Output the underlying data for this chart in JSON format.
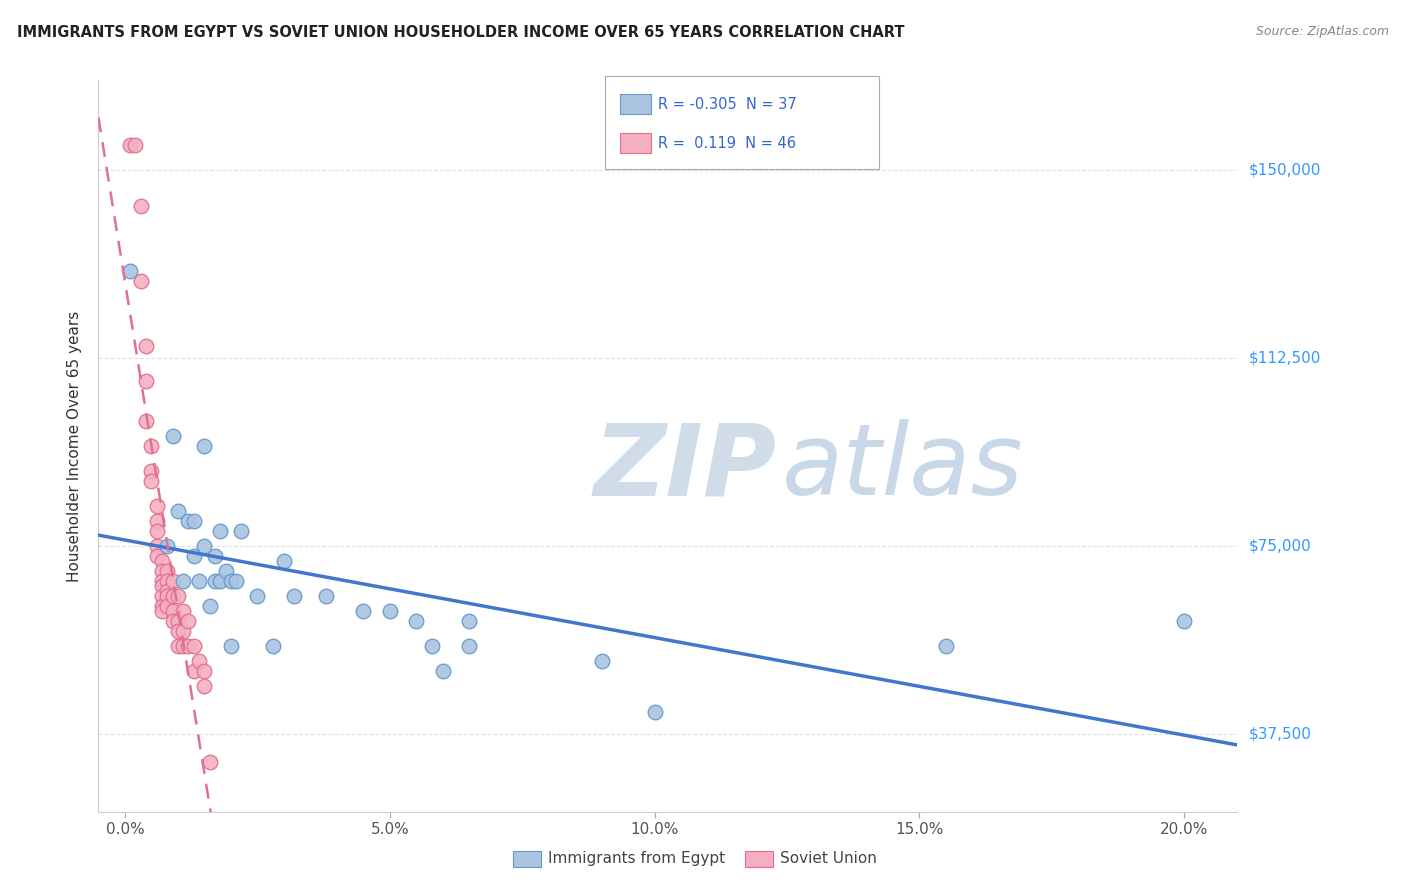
{
  "title": "IMMIGRANTS FROM EGYPT VS SOVIET UNION HOUSEHOLDER INCOME OVER 65 YEARS CORRELATION CHART",
  "source": "Source: ZipAtlas.com",
  "ylabel": "Householder Income Over 65 years",
  "xlabel_ticks": [
    "0.0%",
    "5.0%",
    "10.0%",
    "15.0%",
    "20.0%"
  ],
  "xlabel_vals": [
    0.0,
    0.05,
    0.1,
    0.15,
    0.2
  ],
  "ylabel_ticks": [
    "$37,500",
    "$75,000",
    "$112,500",
    "$150,000"
  ],
  "ylabel_vals": [
    37500,
    75000,
    112500,
    150000
  ],
  "xlim": [
    -0.005,
    0.21
  ],
  "ylim": [
    22000,
    168000
  ],
  "egypt_color": "#aac4e2",
  "soviet_color": "#f5afc0",
  "egypt_edge": "#6699cc",
  "soviet_edge": "#e07090",
  "egypt_R": -0.305,
  "egypt_N": 37,
  "soviet_R": 0.119,
  "soviet_N": 46,
  "egypt_scatter": [
    [
      0.001,
      130000
    ],
    [
      0.008,
      75000
    ],
    [
      0.009,
      97000
    ],
    [
      0.01,
      82000
    ],
    [
      0.011,
      68000
    ],
    [
      0.012,
      80000
    ],
    [
      0.013,
      73000
    ],
    [
      0.013,
      80000
    ],
    [
      0.014,
      68000
    ],
    [
      0.015,
      75000
    ],
    [
      0.015,
      95000
    ],
    [
      0.016,
      63000
    ],
    [
      0.017,
      73000
    ],
    [
      0.017,
      68000
    ],
    [
      0.018,
      68000
    ],
    [
      0.018,
      78000
    ],
    [
      0.019,
      70000
    ],
    [
      0.02,
      68000
    ],
    [
      0.02,
      55000
    ],
    [
      0.021,
      68000
    ],
    [
      0.022,
      78000
    ],
    [
      0.025,
      65000
    ],
    [
      0.028,
      55000
    ],
    [
      0.03,
      72000
    ],
    [
      0.032,
      65000
    ],
    [
      0.038,
      65000
    ],
    [
      0.045,
      62000
    ],
    [
      0.05,
      62000
    ],
    [
      0.055,
      60000
    ],
    [
      0.058,
      55000
    ],
    [
      0.06,
      50000
    ],
    [
      0.065,
      55000
    ],
    [
      0.065,
      60000
    ],
    [
      0.09,
      52000
    ],
    [
      0.1,
      42000
    ],
    [
      0.155,
      55000
    ],
    [
      0.2,
      60000
    ]
  ],
  "soviet_scatter": [
    [
      0.001,
      155000
    ],
    [
      0.002,
      155000
    ],
    [
      0.003,
      143000
    ],
    [
      0.003,
      128000
    ],
    [
      0.004,
      115000
    ],
    [
      0.004,
      108000
    ],
    [
      0.004,
      100000
    ],
    [
      0.005,
      95000
    ],
    [
      0.005,
      90000
    ],
    [
      0.005,
      88000
    ],
    [
      0.006,
      83000
    ],
    [
      0.006,
      80000
    ],
    [
      0.006,
      78000
    ],
    [
      0.006,
      75000
    ],
    [
      0.006,
      73000
    ],
    [
      0.007,
      72000
    ],
    [
      0.007,
      70000
    ],
    [
      0.007,
      68000
    ],
    [
      0.007,
      67000
    ],
    [
      0.007,
      65000
    ],
    [
      0.007,
      63000
    ],
    [
      0.007,
      62000
    ],
    [
      0.008,
      70000
    ],
    [
      0.008,
      68000
    ],
    [
      0.008,
      66000
    ],
    [
      0.008,
      65000
    ],
    [
      0.008,
      63000
    ],
    [
      0.009,
      68000
    ],
    [
      0.009,
      65000
    ],
    [
      0.009,
      62000
    ],
    [
      0.009,
      60000
    ],
    [
      0.01,
      65000
    ],
    [
      0.01,
      60000
    ],
    [
      0.01,
      58000
    ],
    [
      0.01,
      55000
    ],
    [
      0.011,
      62000
    ],
    [
      0.011,
      58000
    ],
    [
      0.011,
      55000
    ],
    [
      0.012,
      60000
    ],
    [
      0.012,
      55000
    ],
    [
      0.013,
      55000
    ],
    [
      0.013,
      50000
    ],
    [
      0.014,
      52000
    ],
    [
      0.015,
      50000
    ],
    [
      0.015,
      47000
    ],
    [
      0.016,
      32000
    ]
  ],
  "background_color": "#ffffff",
  "grid_color": "#e0e0e0",
  "title_color": "#222222",
  "axis_label_color": "#333333",
  "right_tick_color": "#3399ff",
  "watermark_zip_color": "#d0dce8",
  "watermark_atlas_color": "#c8d8e8"
}
